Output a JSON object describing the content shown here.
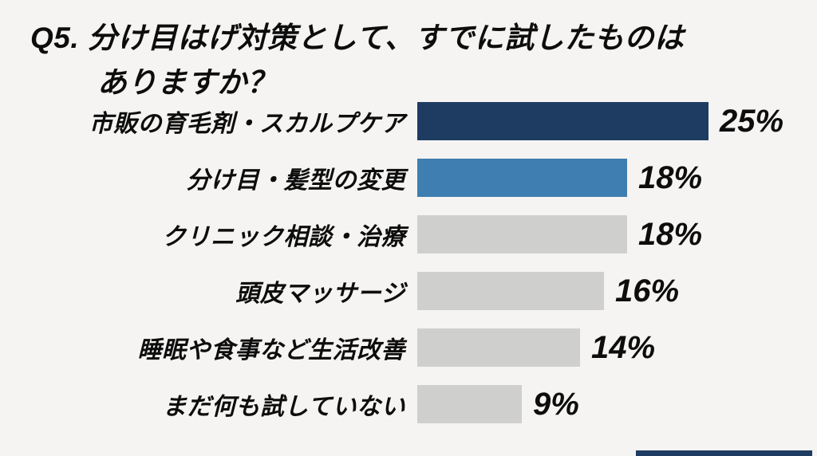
{
  "page": {
    "background_color": "#f5f4f2",
    "text_color": "#0d0d0d"
  },
  "title": {
    "line1": "Q5. 分け目はげ対策として、すでに試したものは",
    "line2": "ありますか？"
  },
  "chart_data": {
    "type": "bar",
    "orientation": "horizontal",
    "title": "Q5. 分け目はげ対策として、すでに試したものはありますか？",
    "categories": [
      "市販の育毛剤・スカルプケア",
      "分け目・髪型の変更",
      "クリニック相談・治療",
      "頭皮マッサージ",
      "睡眠や食事など生活改善",
      "まだ何も試していない"
    ],
    "values": [
      25,
      18,
      18,
      16,
      14,
      9
    ],
    "value_labels": [
      "25%",
      "18%",
      "18%",
      "16%",
      "14%",
      "9%"
    ],
    "unit": "%",
    "xlim": [
      0,
      25
    ],
    "grid": false,
    "legend": "none",
    "value_label_position": "right-of-bar",
    "category_label_position": "left-of-bar",
    "bar_colors": [
      "#1e3c62",
      "#3f7eb0",
      "#cfd0cd",
      "#cfd0cd",
      "#cfd0cd",
      "#cfd0cd"
    ]
  },
  "colors": {
    "accent_navy": "#1e3c62",
    "accent_blue": "#3f7eb0",
    "bar_gray": "#cfd0cd"
  },
  "decor": {
    "bottom_right_strip_color": "#1e3c62"
  }
}
